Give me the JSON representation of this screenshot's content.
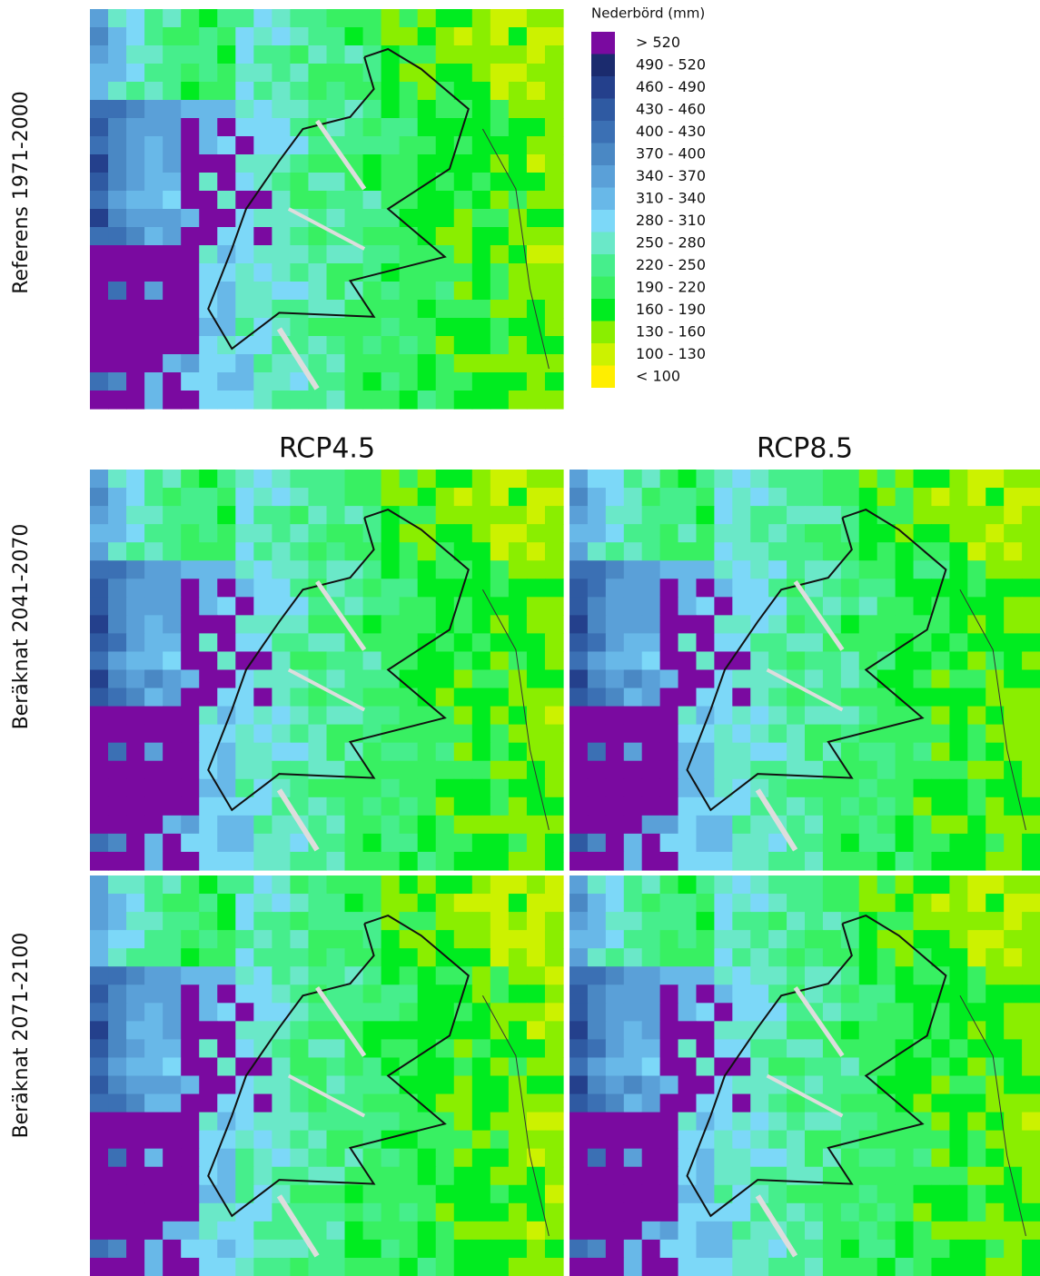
{
  "legend": {
    "title": "Nederbörd (mm)",
    "entries": [
      {
        "label": "> 520",
        "color": "#7a0aa0"
      },
      {
        "label": "490 - 520",
        "color": "#1b2b6e"
      },
      {
        "label": "460 - 490",
        "color": "#24408c"
      },
      {
        "label": "430 - 460",
        "color": "#2f5aa2"
      },
      {
        "label": "400 - 430",
        "color": "#3b70b4"
      },
      {
        "label": "370 - 400",
        "color": "#4a88c4"
      },
      {
        "label": "340 - 370",
        "color": "#5aa0d8"
      },
      {
        "label": "310 - 340",
        "color": "#68b8e8"
      },
      {
        "label": "280 - 310",
        "color": "#7cd8f8"
      },
      {
        "label": "250 - 280",
        "color": "#6ae8c8"
      },
      {
        "label": "220 - 250",
        "color": "#46ee8c"
      },
      {
        "label": "190 - 220",
        "color": "#38f062"
      },
      {
        "label": "160 - 190",
        "color": "#00ec20"
      },
      {
        "label": "130 - 160",
        "color": "#8aee00"
      },
      {
        "label": "100 - 130",
        "color": "#ccf200"
      },
      {
        "label": "< 100",
        "color": "#ffee00"
      }
    ]
  },
  "columns": [
    "RCP4.5",
    "RCP8.5"
  ],
  "rows": [
    "Referens 1971-2000",
    "Beräknat 2041-2070",
    "Beräknat 2071-2100"
  ]
}
